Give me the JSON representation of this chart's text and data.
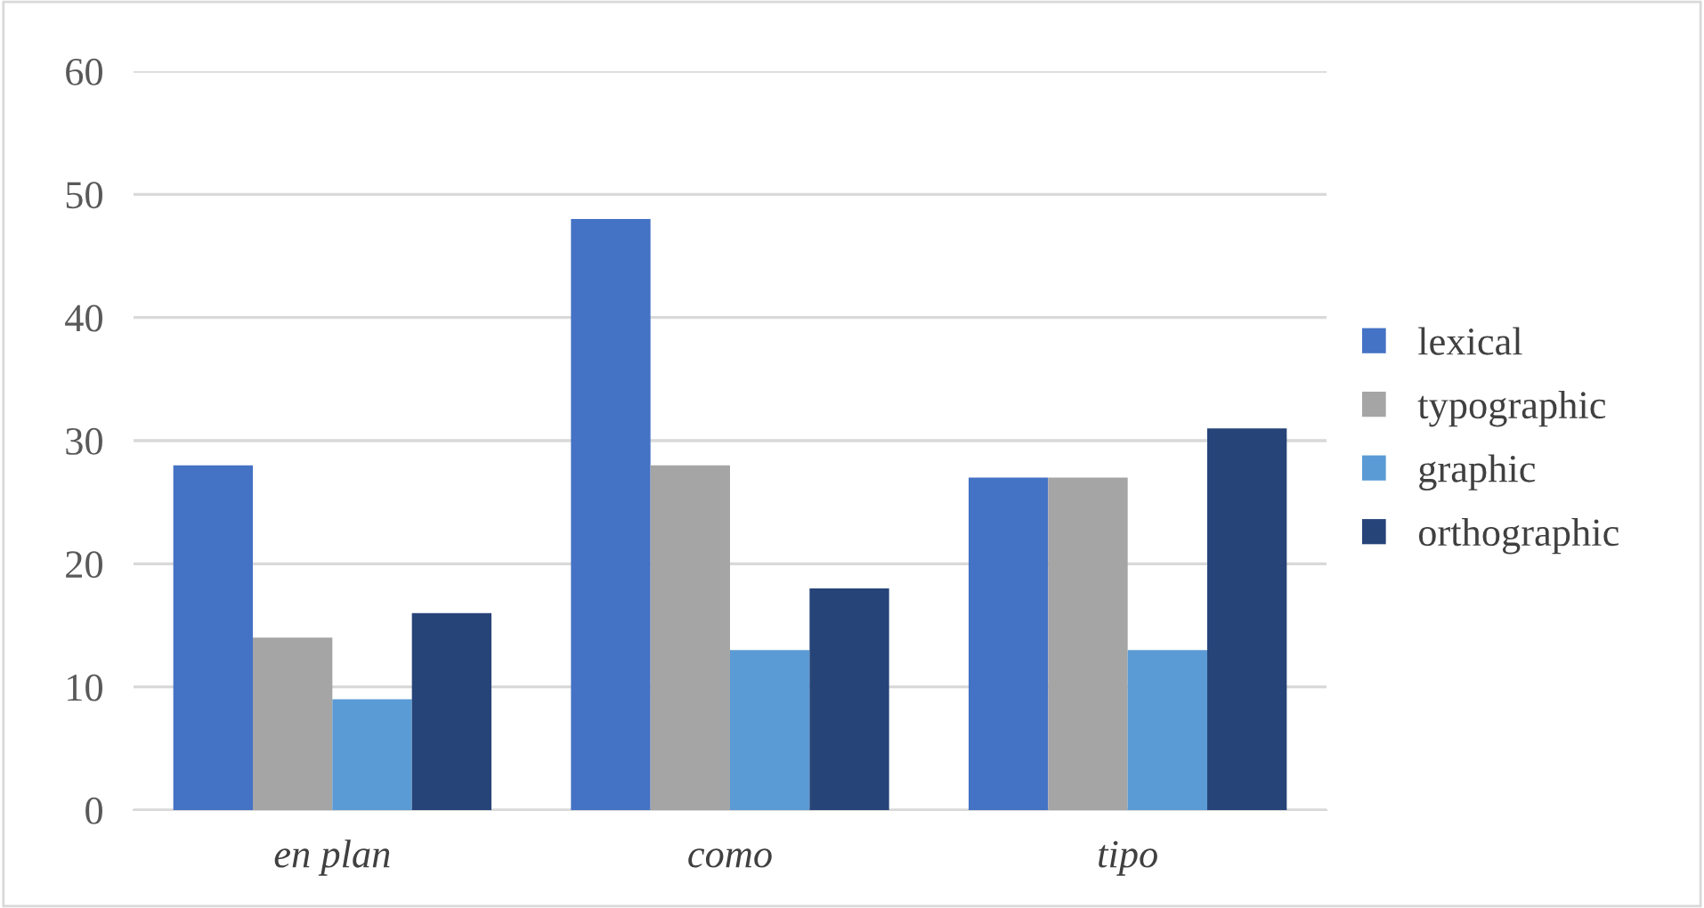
{
  "chart_data": {
    "type": "bar",
    "categories": [
      "en plan",
      "como",
      "tipo"
    ],
    "series": [
      {
        "name": "lexical",
        "color": "#4472c4",
        "values": [
          28,
          48,
          27
        ]
      },
      {
        "name": "typographic",
        "color": "#a5a5a5",
        "values": [
          14,
          28,
          27
        ]
      },
      {
        "name": "graphic",
        "color": "#5b9bd5",
        "values": [
          9,
          13,
          13
        ]
      },
      {
        "name": "orthographic",
        "color": "#264478",
        "values": [
          16,
          18,
          31
        ]
      }
    ],
    "ylim": [
      0,
      60
    ],
    "yticks": [
      0,
      10,
      20,
      30,
      40,
      50,
      60
    ],
    "grid": "y",
    "legend": "right"
  }
}
